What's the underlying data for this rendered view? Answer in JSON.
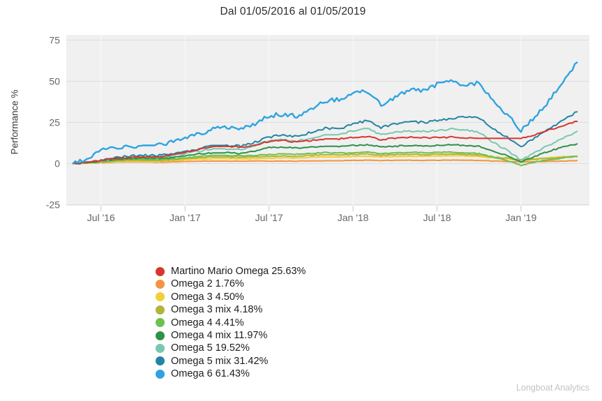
{
  "credit": "Longboat Analytics",
  "chart_data": {
    "type": "line",
    "title": "Dal 01/05/2016 al 01/05/2019",
    "ylabel": "Performance %",
    "ylim": [
      -25,
      75
    ],
    "yticks": [
      75,
      50,
      25,
      0,
      -25
    ],
    "x_range_start": "01/05/2016",
    "x_range_end": "01/05/2019",
    "x_unit": "months",
    "grid": true,
    "plot_bg": "#f0f0f0",
    "grid_color": "#dddddd",
    "x_grid_color": "#fbfbfb",
    "tick_color": "#c8c8c8",
    "axis_text_color": "#666666",
    "legend_position": "bottom-left",
    "xticks": [
      {
        "i": 2,
        "label": "Jul '16"
      },
      {
        "i": 8,
        "label": "Jan '17"
      },
      {
        "i": 14,
        "label": "Jul '17"
      },
      {
        "i": 20,
        "label": "Jan '18"
      },
      {
        "i": 26,
        "label": "Jul '18"
      },
      {
        "i": 32,
        "label": "Jan '19"
      }
    ],
    "series": [
      {
        "name": "Martino Mario Omega",
        "final_pct": 25.63,
        "label": "Martino Mario Omega 25.63%",
        "slug": "martino-mario-omega",
        "color": "#d6362f",
        "noise": 0.45,
        "width": 2,
        "z": 8,
        "values": [
          0,
          0.5,
          2,
          3,
          3.5,
          4,
          4,
          5,
          7,
          8.5,
          10,
          10.5,
          10,
          11,
          13.5,
          14,
          13,
          14,
          15,
          15,
          15.7,
          16.5,
          14.5,
          15.5,
          16,
          15.7,
          15.8,
          16,
          15.5,
          15.3,
          15.3,
          15.3,
          15.3,
          17.5,
          20.5,
          23,
          25.63
        ]
      },
      {
        "name": "Omega 2",
        "final_pct": 1.76,
        "label": "Omega 2 1.76%",
        "slug": "omega-2",
        "color": "#f3953f",
        "noise": 0.12,
        "width": 2,
        "z": 1,
        "values": [
          0,
          0.2,
          0.5,
          0.8,
          1,
          1,
          0.8,
          1,
          1.2,
          1.4,
          1.5,
          1.5,
          1.4,
          1.6,
          1.4,
          1.5,
          1.4,
          1.6,
          1.7,
          1.7,
          1.9,
          2,
          1.8,
          2,
          2,
          1.9,
          2,
          2.1,
          2,
          1.9,
          1.5,
          1.2,
          0.9,
          1.1,
          1.3,
          1.5,
          1.76
        ]
      },
      {
        "name": "Omega 3",
        "final_pct": 4.5,
        "label": "Omega 3 4.50%",
        "slug": "omega-3",
        "color": "#f2cf35",
        "noise": 0.2,
        "width": 2,
        "z": 2,
        "values": [
          0,
          0.3,
          0.8,
          1.2,
          1.5,
          1.5,
          1.3,
          1.8,
          2.2,
          2.8,
          3,
          3,
          2.8,
          3,
          3.2,
          3.5,
          3.3,
          3.8,
          4,
          4,
          4.3,
          4.5,
          4,
          4.3,
          4.5,
          4.4,
          4.6,
          4.8,
          4.6,
          4.3,
          3.5,
          3,
          2.5,
          3,
          3.5,
          4.2,
          4.5
        ]
      },
      {
        "name": "Omega 3 mix",
        "final_pct": 4.18,
        "label": "Omega 3 mix 4.18%",
        "slug": "omega-3-mix",
        "color": "#b2b33d",
        "noise": 0.25,
        "width": 2,
        "z": 3,
        "values": [
          0,
          0.4,
          1,
          1.5,
          2,
          2,
          1.8,
          2.3,
          2.8,
          3.5,
          4,
          4,
          3.8,
          4.2,
          4.4,
          4.8,
          4.4,
          5,
          5.3,
          5.2,
          5.5,
          5.8,
          5,
          5.4,
          5.6,
          5.4,
          5.6,
          5.8,
          5.6,
          5.2,
          4,
          3.2,
          2,
          2.6,
          3.2,
          3.8,
          4.18
        ]
      },
      {
        "name": "Omega 4",
        "final_pct": 4.41,
        "label": "Omega 4 4.41%",
        "slug": "omega-4",
        "color": "#6ec14e",
        "noise": 0.3,
        "width": 2,
        "z": 4,
        "values": [
          0,
          0.5,
          1.2,
          2,
          2.5,
          2.5,
          2.2,
          2.8,
          3.5,
          4.2,
          5,
          5,
          4.6,
          5,
          5.5,
          6,
          5.6,
          6.2,
          6.6,
          6.4,
          6.5,
          7,
          6,
          6.5,
          6.8,
          6.6,
          6.8,
          7,
          6.6,
          6,
          4,
          2,
          -1.2,
          1,
          2.2,
          3.5,
          4.41
        ]
      },
      {
        "name": "Omega 4 mix",
        "final_pct": 11.97,
        "label": "Omega 4 mix 11.97%",
        "slug": "omega-4-mix",
        "color": "#2d9249",
        "noise": 0.4,
        "width": 2,
        "z": 5,
        "values": [
          0,
          0.6,
          1.5,
          2.5,
          3,
          3.2,
          3,
          3.5,
          5,
          6,
          6.5,
          6.5,
          6,
          7.5,
          9.7,
          10,
          9.5,
          10,
          10.5,
          10.5,
          11,
          11.5,
          10,
          10.5,
          11,
          10.8,
          11,
          11.5,
          11,
          10.5,
          7.5,
          5,
          1,
          4.5,
          7.5,
          10,
          11.97
        ]
      },
      {
        "name": "Omega 5",
        "final_pct": 19.52,
        "label": "Omega 5 19.52%",
        "slug": "omega-5",
        "color": "#79c7af",
        "noise": 0.55,
        "width": 2,
        "z": 6,
        "values": [
          0,
          0.7,
          1.8,
          3,
          4,
          4.2,
          4,
          4.8,
          6,
          7.5,
          9,
          9,
          8.5,
          11,
          14,
          14.5,
          13.5,
          15.5,
          17.5,
          17.5,
          20,
          21.5,
          17.5,
          19,
          20,
          19.5,
          20,
          21,
          20.5,
          19,
          13,
          8,
          2,
          7,
          11,
          15.5,
          19.52
        ]
      },
      {
        "name": "Omega 5 mix",
        "final_pct": 31.42,
        "label": "Omega 5 mix 31.42%",
        "slug": "omega-5-mix",
        "color": "#2384a5",
        "noise": 0.7,
        "width": 2,
        "z": 7,
        "values": [
          0,
          0.8,
          2,
          3.5,
          4.5,
          5,
          4.8,
          5.5,
          7,
          9,
          11,
          11,
          10.5,
          13,
          16,
          17.5,
          16.5,
          19,
          21.5,
          21,
          24,
          26,
          22,
          24,
          25.5,
          25,
          26,
          27.5,
          28.5,
          28,
          21,
          16,
          10,
          16,
          21,
          26,
          31.42
        ]
      },
      {
        "name": "Omega 6",
        "final_pct": 61.43,
        "label": "Omega 6 61.43%",
        "slug": "omega-6",
        "color": "#2fa3e0",
        "noise": 1.3,
        "width": 2.4,
        "z": 9,
        "values": [
          0,
          3,
          8,
          10,
          10.5,
          11,
          11,
          13,
          16,
          18,
          21,
          22,
          21,
          24,
          29,
          30,
          29,
          33,
          38,
          39,
          42,
          44,
          36,
          40,
          45,
          44,
          48,
          50,
          47,
          49,
          38,
          30,
          20,
          28,
          38,
          50,
          61.43
        ]
      }
    ]
  }
}
